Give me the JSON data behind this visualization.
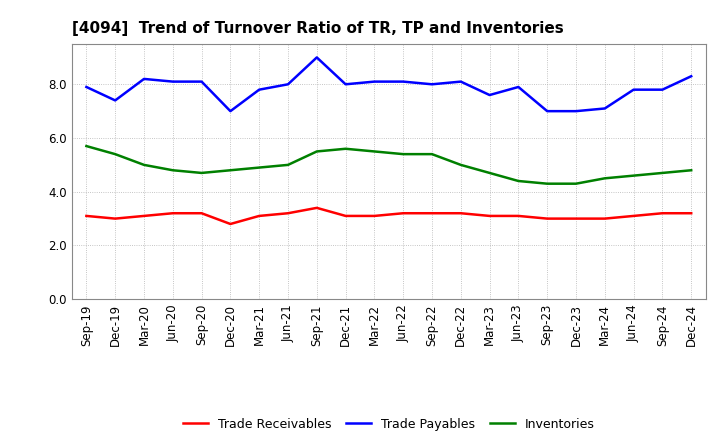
{
  "title": "[4094]  Trend of Turnover Ratio of TR, TP and Inventories",
  "x_labels": [
    "Sep-19",
    "Dec-19",
    "Mar-20",
    "Jun-20",
    "Sep-20",
    "Dec-20",
    "Mar-21",
    "Jun-21",
    "Sep-21",
    "Dec-21",
    "Mar-22",
    "Jun-22",
    "Sep-22",
    "Dec-22",
    "Mar-23",
    "Jun-23",
    "Sep-23",
    "Dec-23",
    "Mar-24",
    "Jun-24",
    "Sep-24",
    "Dec-24"
  ],
  "trade_receivables": [
    3.1,
    3.0,
    3.1,
    3.2,
    3.2,
    2.8,
    3.1,
    3.2,
    3.4,
    3.1,
    3.1,
    3.2,
    3.2,
    3.2,
    3.1,
    3.1,
    3.0,
    3.0,
    3.0,
    3.1,
    3.2,
    3.2
  ],
  "trade_payables": [
    7.9,
    7.4,
    8.2,
    8.1,
    8.1,
    7.0,
    7.8,
    8.0,
    9.0,
    8.0,
    8.1,
    8.1,
    8.0,
    8.1,
    7.6,
    7.9,
    7.0,
    7.0,
    7.1,
    7.8,
    7.8,
    8.3
  ],
  "inventories": [
    5.7,
    5.4,
    5.0,
    4.8,
    4.7,
    4.8,
    4.9,
    5.0,
    5.5,
    5.6,
    5.5,
    5.4,
    5.4,
    5.0,
    4.7,
    4.4,
    4.3,
    4.3,
    4.5,
    4.6,
    4.7,
    4.8
  ],
  "ylim": [
    0.0,
    9.5
  ],
  "yticks": [
    0.0,
    2.0,
    4.0,
    6.0,
    8.0
  ],
  "colors": {
    "trade_receivables": "#ff0000",
    "trade_payables": "#0000ff",
    "inventories": "#008000"
  },
  "legend_labels": [
    "Trade Receivables",
    "Trade Payables",
    "Inventories"
  ],
  "background_color": "#ffffff",
  "grid_color": "#aaaaaa",
  "title_fontsize": 11,
  "tick_fontsize": 8.5,
  "linewidth": 1.8
}
